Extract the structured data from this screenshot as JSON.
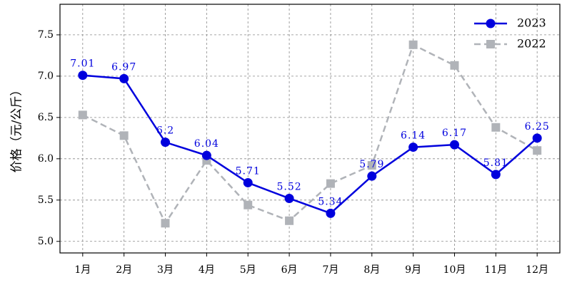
{
  "chart_data": {
    "type": "line",
    "ylabel": "价格（元/公斤）",
    "categories": [
      "1月",
      "2月",
      "3月",
      "4月",
      "5月",
      "6月",
      "7月",
      "8月",
      "9月",
      "10月",
      "11月",
      "12月"
    ],
    "series": [
      {
        "name": "2023",
        "color": "#0000dd",
        "marker": "circle",
        "dashed": false,
        "values": [
          7.01,
          6.97,
          6.2,
          6.04,
          5.71,
          5.52,
          5.34,
          5.79,
          6.14,
          6.17,
          5.81,
          6.25
        ]
      },
      {
        "name": "2022",
        "color": "#b0b3b8",
        "marker": "square",
        "dashed": true,
        "values": [
          6.53,
          6.28,
          5.22,
          5.98,
          5.44,
          5.25,
          5.7,
          5.92,
          7.38,
          7.13,
          6.38,
          6.1
        ]
      }
    ],
    "data_labels_series": 0,
    "ylim": [
      4.86,
      7.87
    ],
    "yticks": [
      {
        "value": 5,
        "label": "5.0"
      },
      5.5,
      {
        "value": 6,
        "label": "6.0"
      },
      6.5,
      {
        "value": 7,
        "label": "7.0"
      },
      7.5
    ],
    "grid": true,
    "legend": "upper-right"
  }
}
